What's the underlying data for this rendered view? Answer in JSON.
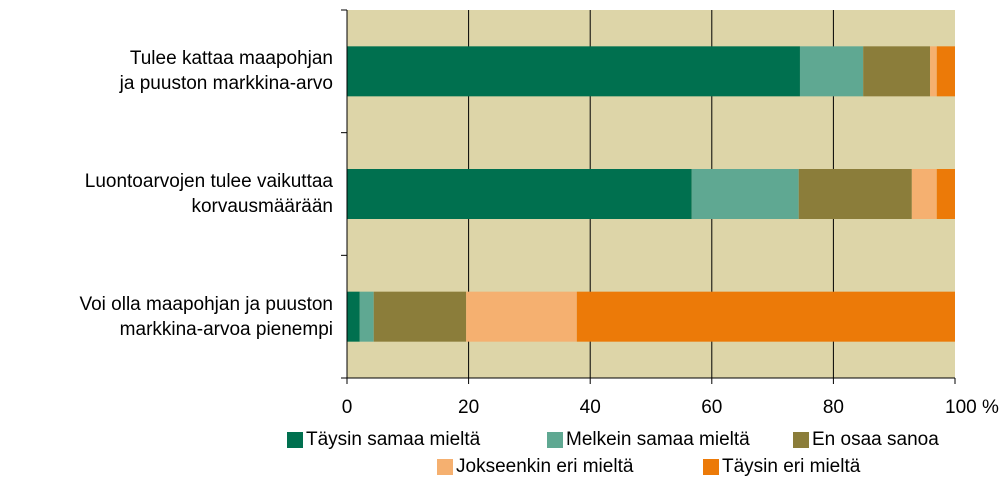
{
  "chart_data": {
    "type": "stacked-barh",
    "categories": [
      "Tulee kattaa maapohjan\nja puuston markkina-arvo",
      "Luontoarvojen tulee vaikuttaa\nkorvausmäärään",
      "Voi olla maapohjan ja puuston\nmarkkina-arvoa pienempi"
    ],
    "series": [
      {
        "name": "Täysin samaa mieltä",
        "color": "#00704f",
        "values": [
          74.5,
          56.7,
          2.1
        ]
      },
      {
        "name": "Melkein samaa mieltä",
        "color": "#5fa892",
        "values": [
          10.4,
          17.6,
          2.3
        ]
      },
      {
        "name": "En osaa sanoa",
        "color": "#8b7d3a",
        "values": [
          11.0,
          18.6,
          15.2
        ]
      },
      {
        "name": "Jokseenkin eri mieltä",
        "color": "#f5b070",
        "values": [
          1.1,
          4.1,
          18.2
        ]
      },
      {
        "name": "Täysin eri mieltä",
        "color": "#ec7a08",
        "values": [
          3.0,
          3.0,
          62.2
        ]
      }
    ],
    "xlim": [
      0,
      100
    ],
    "xticks": [
      0,
      20,
      40,
      60,
      80,
      {
        "value": 100,
        "label": "100 %"
      }
    ],
    "grid": true,
    "background": "#ddd5a8"
  }
}
